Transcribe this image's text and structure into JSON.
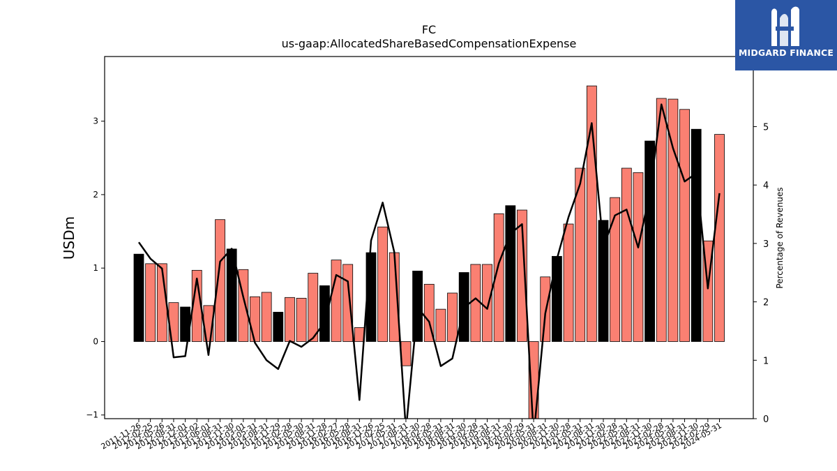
{
  "chart_data": {
    "type": "bar",
    "title": "FC",
    "subtitle": "us-gaap:AllocatedShareBasedCompensationExpense",
    "ylabel": "USDm",
    "y2label": "Percentage of Revenues",
    "ylim": [
      -1.05,
      3.88
    ],
    "y2lim": [
      0,
      6.2
    ],
    "yticks": [
      -1,
      0,
      1,
      2,
      3
    ],
    "y2ticks": [
      0,
      1,
      2,
      3,
      4,
      5
    ],
    "grid": false,
    "bar_colors": {
      "q4": "#000000",
      "other": "#fa8072"
    },
    "line_color": "#000000",
    "categories": [
      "2011-11-26",
      "2012-02-25",
      "2012-05-26",
      "2012-08-31",
      "2012-12-01",
      "2013-03-02",
      "2013-06-01",
      "2013-08-31",
      "2013-11-30",
      "2014-03-01",
      "2014-05-31",
      "2014-08-31",
      "2014-11-29",
      "2015-02-28",
      "2015-05-30",
      "2015-08-31",
      "2015-11-28",
      "2016-02-27",
      "2016-05-28",
      "2016-08-31",
      "2016-11-26",
      "2017-02-25",
      "2017-05-31",
      "2017-08-31",
      "2017-11-30",
      "2018-02-28",
      "2018-05-31",
      "2018-08-31",
      "2018-11-30",
      "2019-02-28",
      "2019-05-31",
      "2019-08-31",
      "2019-11-30",
      "2020-02-29",
      "2020-05-31",
      "2020-08-31",
      "2020-11-30",
      "2021-02-28",
      "2021-05-31",
      "2021-08-31",
      "2021-11-30",
      "2022-02-28",
      "2022-05-31",
      "2022-08-31",
      "2022-11-30",
      "2023-02-28",
      "2023-05-31",
      "2023-08-31",
      "2023-11-30",
      "2024-02-29",
      "2024-05-31"
    ],
    "tick_labels": [
      "2011-11-26",
      "2012-02-25",
      "2012-05-26",
      "2012-08-31",
      "2012-12-01",
      "2013-03-02",
      "2013-06-01",
      "2013-08-31",
      "2013-11-30",
      "2014-03-01",
      "2014-05-31",
      "2014-08-31",
      "2014-11-29",
      "2015-02-28",
      "2015-05-30",
      "2015-08-31",
      "2015-11-28",
      "2016-02-27",
      "2016-05-28",
      "2016-08-31",
      "2016-11-26",
      "2017-02-25",
      "2017-05-31",
      "2017-08-31",
      "2017-11-30",
      "2018-02-28",
      "2018-05-31",
      "2018-08-31",
      "2018-11-30",
      "2019-02-28",
      "2019-05-31",
      "2019-08-31",
      "2019-11-30",
      "2020-02-29",
      "2020-05-31",
      "2020-08-31",
      "2020-11-30",
      "2021-02-28",
      "2021-05-31",
      "2021-08-31",
      "2021-11-30",
      "2022-02-28",
      "2022-05-31",
      "2022-08-31",
      "2022-11-30",
      "2023-02-28",
      "2023-05-31",
      "2023-08-31",
      "2023-11-30",
      "2024-02-29",
      "2024-05-31"
    ],
    "values": [
      1.19,
      1.06,
      1.06,
      0.53,
      0.47,
      0.97,
      0.49,
      1.66,
      1.26,
      0.98,
      0.61,
      0.67,
      0.4,
      0.6,
      0.59,
      0.93,
      0.76,
      1.11,
      1.05,
      0.19,
      1.21,
      1.56,
      1.21,
      -0.33,
      0.96,
      0.78,
      0.44,
      0.66,
      0.94,
      1.05,
      1.05,
      1.74,
      1.85,
      1.79,
      -1.1,
      0.88,
      1.16,
      1.6,
      2.36,
      3.48,
      1.65,
      1.96,
      2.36,
      2.3,
      2.73,
      3.31,
      3.3,
      3.16,
      2.89,
      1.37,
      2.82
    ],
    "q4_flags": [
      1,
      0,
      0,
      0,
      1,
      0,
      0,
      0,
      1,
      0,
      0,
      0,
      1,
      0,
      0,
      0,
      1,
      0,
      0,
      0,
      1,
      0,
      0,
      0,
      1,
      0,
      0,
      0,
      1,
      0,
      0,
      0,
      1,
      0,
      0,
      0,
      1,
      0,
      0,
      0,
      1,
      0,
      0,
      0,
      1,
      0,
      0,
      0,
      1,
      0,
      0
    ],
    "pct_of_revenue": [
      3.02,
      2.74,
      2.57,
      1.05,
      1.07,
      2.4,
      1.09,
      2.69,
      2.91,
      2.08,
      1.3,
      1.0,
      0.85,
      1.33,
      1.23,
      1.38,
      1.65,
      2.46,
      2.35,
      0.32,
      3.05,
      3.7,
      2.85,
      -0.2,
      1.9,
      1.66,
      0.9,
      1.03,
      1.9,
      2.06,
      1.88,
      2.66,
      3.17,
      3.33,
      -0.3,
      1.8,
      2.73,
      3.45,
      4.02,
      5.06,
      2.94,
      3.48,
      3.58,
      2.93,
      3.86,
      5.38,
      4.63,
      4.06,
      4.2,
      2.23,
      3.86
    ]
  },
  "logo": {
    "text": "MIDGARD FINANCE",
    "background": "#2b56a5"
  }
}
